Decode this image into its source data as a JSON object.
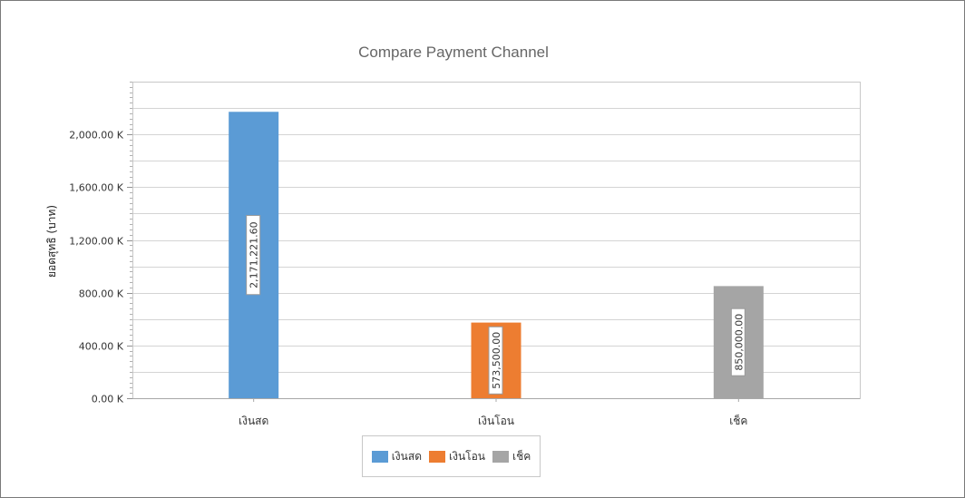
{
  "chart_data": {
    "type": "bar",
    "title": "Compare Payment Channel",
    "ylabel": "ยอดสุทธิ (บาท)",
    "xlabel": "",
    "categories": [
      "เงินสด",
      "เงินโอน",
      "เช็ค"
    ],
    "values": [
      2171221.6,
      573500.0,
      850000.0
    ],
    "value_labels": [
      "2,171,221.60",
      "573,500.00",
      "850,000.00"
    ],
    "colors": [
      "#5b9bd5",
      "#ed7d31",
      "#a5a5a5"
    ],
    "ylim": [
      0,
      2400000
    ],
    "yticks": [
      0,
      400000,
      800000,
      1200000,
      1600000,
      2000000
    ],
    "ytick_labels": [
      "0.00 K",
      "400.00 K",
      "800.00 K",
      "1,200.00 K",
      "1,600.00 K",
      "2,000.00 K"
    ],
    "grid": true,
    "legend": {
      "position": "bottom",
      "entries": [
        "เงินสด",
        "เงินโอน",
        "เช็ค"
      ]
    }
  }
}
